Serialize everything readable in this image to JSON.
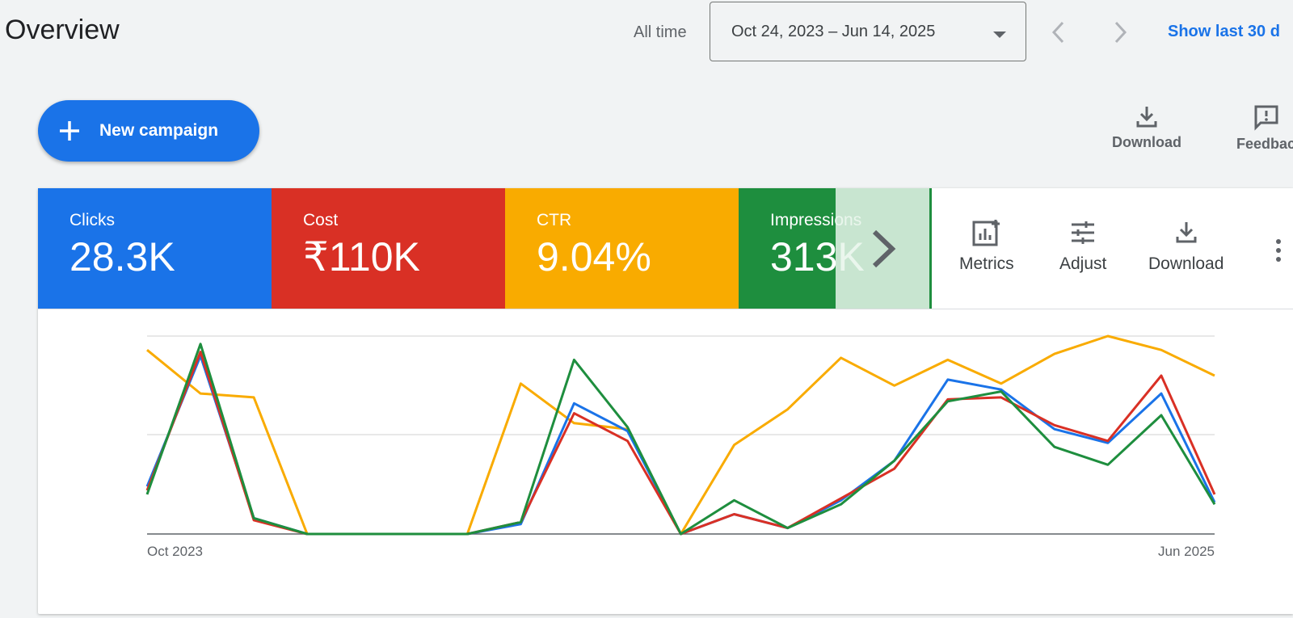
{
  "header": {
    "title": "Overview",
    "range_label": "All time",
    "date_range": "Oct 24, 2023 – Jun 14, 2025",
    "show_last": "Show last 30 d"
  },
  "actions": {
    "new_campaign": "New campaign",
    "download": "Download",
    "feedback": "Feedbac"
  },
  "scorecards": [
    {
      "label": "Clicks",
      "value": "28.3K",
      "color": "#1a73e8"
    },
    {
      "label": "Cost",
      "value": "₹110K",
      "color": "#d93025"
    },
    {
      "label": "CTR",
      "value": "9.04%",
      "color": "#f9ab00"
    },
    {
      "label": "Impressions",
      "value": "313K",
      "color": "#1e8e3e"
    }
  ],
  "chart_toolbar": {
    "metrics": "Metrics",
    "adjust": "Adjust",
    "download": "Download"
  },
  "chart_data": {
    "type": "line",
    "x_start_label": "Oct 2023",
    "x_end_label": "Jun 2025",
    "points": 21,
    "ylim": [
      0,
      100
    ],
    "series": [
      {
        "name": "Clicks",
        "color": "#1a73e8",
        "values": [
          24,
          90,
          8,
          0,
          0,
          0,
          0,
          5,
          66,
          52,
          0,
          10,
          3,
          17,
          37,
          78,
          73,
          53,
          46,
          71,
          16
        ]
      },
      {
        "name": "Cost",
        "color": "#d93025",
        "values": [
          22,
          92,
          7,
          0,
          0,
          0,
          0,
          6,
          61,
          47,
          0,
          10,
          3,
          18,
          33,
          68,
          69,
          55,
          47,
          80,
          20
        ]
      },
      {
        "name": "CTR",
        "color": "#f9ab00",
        "values": [
          93,
          71,
          69,
          0,
          0,
          0,
          0,
          76,
          56,
          53,
          0,
          45,
          63,
          89,
          75,
          88,
          76,
          91,
          100,
          93,
          80
        ]
      },
      {
        "name": "Impressions",
        "color": "#1e8e3e",
        "values": [
          20,
          96,
          8,
          0,
          0,
          0,
          0,
          6,
          88,
          54,
          0,
          17,
          3,
          15,
          37,
          67,
          72,
          44,
          35,
          60,
          15
        ]
      }
    ]
  }
}
